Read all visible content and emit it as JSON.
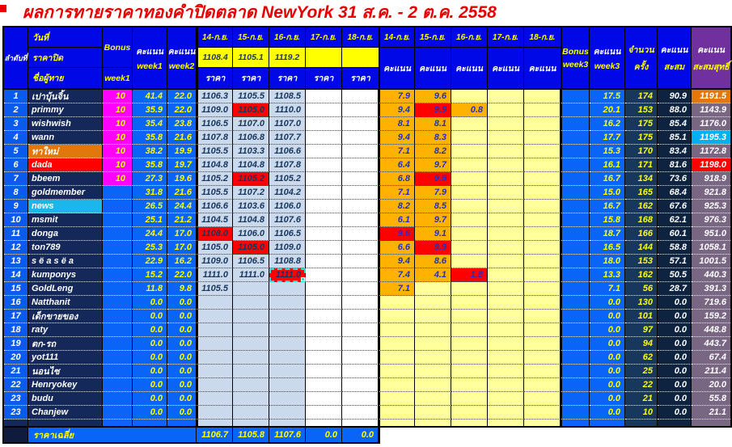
{
  "title": "ผลการทายราคาทองคำปิดตลาด NewYork 31 ส.ค. - 2 ต.ค. 2558",
  "labels": {
    "rank": "ลำดับที่",
    "date": "วันที่",
    "close": "ราคาปิด",
    "name": "ชื่อผู้ทาย",
    "bonus": "Bonus",
    "week1": "week1",
    "week2": "week2",
    "week3": "week3",
    "score": "คะแนน",
    "price": "ราคา",
    "count_line1": "จำนวน",
    "count_line2": "ครั้ง",
    "cum_line1": "คะแนน",
    "cum_line2": "สะสม",
    "net_line1": "คะแนน",
    "net_line2": "สะสมสุทธิ์",
    "avg": "ราคาเฉลี่ย"
  },
  "dates": [
    "14-ก.ย.",
    "15-ก.ย.",
    "16-ก.ย.",
    "17-ก.ย.",
    "18-ก.ย."
  ],
  "close_prices": [
    "1108.4",
    "1105.1",
    "1119.2",
    "",
    ""
  ],
  "colors": {
    "header_blue": "#0008E8",
    "data_blue": "#0A64F8",
    "name_navy": "#15285A",
    "highlight_red": "#FF0000",
    "bonus_magenta": "#FF00FF",
    "score_orange": "#FFB300",
    "empty_yellow": "#FFFF9C",
    "price_fill": "#CBD9ED",
    "net_purple": "#786683",
    "net_header_purple": "#7030A0",
    "rank1_orange": "#E2770B",
    "rank_cyan": "#00B0F0",
    "selection_teal": "#20E0D0",
    "title_red": "#E60000"
  },
  "rows": [
    {
      "no": "1",
      "name": "เปาบุ้นจิ้น",
      "name_bg": "",
      "bonus": "10",
      "wk1": "41.4",
      "wk2": "22.0",
      "prices": [
        "1106.3",
        "1105.5",
        "1108.5",
        "",
        ""
      ],
      "p_red": [],
      "sel": -1,
      "scores": [
        "7.9",
        "9.6",
        "",
        "",
        ""
      ],
      "s_red": [],
      "wk3": "17.5",
      "count": "174",
      "cum": "90.9",
      "net": "1191.5",
      "net_bg": "orange"
    },
    {
      "no": "2",
      "name": "primmy",
      "name_bg": "",
      "bonus": "10",
      "wk1": "35.9",
      "wk2": "22.0",
      "prices": [
        "1109.0",
        "1105.0",
        "1110.0",
        "",
        ""
      ],
      "p_red": [
        1
      ],
      "sel": -1,
      "scores": [
        "9.4",
        "9.9",
        "0.8",
        "",
        ""
      ],
      "s_red": [
        1
      ],
      "wk3": "20.1",
      "count": "153",
      "cum": "88.0",
      "net": "1143.9",
      "net_bg": ""
    },
    {
      "no": "3",
      "name": "wishwish",
      "name_bg": "",
      "bonus": "10",
      "wk1": "35.4",
      "wk2": "23.8",
      "prices": [
        "1106.5",
        "1107.0",
        "1107.0",
        "",
        ""
      ],
      "p_red": [],
      "sel": -1,
      "scores": [
        "8.1",
        "8.1",
        "",
        "",
        ""
      ],
      "s_red": [],
      "wk3": "16.2",
      "count": "175",
      "cum": "85.4",
      "net": "1176.0",
      "net_bg": ""
    },
    {
      "no": "4",
      "name": "wann",
      "name_bg": "",
      "bonus": "10",
      "wk1": "35.8",
      "wk2": "21.6",
      "prices": [
        "1107.8",
        "1106.8",
        "1107.7",
        "",
        ""
      ],
      "p_red": [],
      "sel": -1,
      "scores": [
        "9.4",
        "8.3",
        "",
        "",
        ""
      ],
      "s_red": [],
      "wk3": "17.7",
      "count": "175",
      "cum": "85.1",
      "net": "1195.3",
      "net_bg": "cyan"
    },
    {
      "no": "5",
      "name": "ทาใหม่",
      "name_bg": "orange",
      "bonus": "10",
      "wk1": "38.2",
      "wk2": "19.9",
      "prices": [
        "1105.5",
        "1103.3",
        "1106.6",
        "",
        ""
      ],
      "p_red": [],
      "sel": -1,
      "scores": [
        "7.1",
        "8.2",
        "",
        "",
        ""
      ],
      "s_red": [],
      "wk3": "15.3",
      "count": "170",
      "cum": "83.4",
      "net": "1172.8",
      "net_bg": ""
    },
    {
      "no": "6",
      "name": "dada",
      "name_bg": "red",
      "bonus": "10",
      "wk1": "35.8",
      "wk2": "19.7",
      "prices": [
        "1104.8",
        "1104.8",
        "1107.8",
        "",
        ""
      ],
      "p_red": [],
      "sel": -1,
      "scores": [
        "6.4",
        "9.7",
        "",
        "",
        ""
      ],
      "s_red": [],
      "wk3": "16.1",
      "count": "171",
      "cum": "81.6",
      "net": "1198.0",
      "net_bg": "red"
    },
    {
      "no": "7",
      "name": "bbeem",
      "name_bg": "",
      "bonus": "10",
      "wk1": "27.3",
      "wk2": "19.6",
      "prices": [
        "1105.2",
        "1105.2",
        "1105.2",
        "",
        ""
      ],
      "p_red": [
        1
      ],
      "sel": -1,
      "scores": [
        "6.8",
        "9.9",
        "",
        "",
        ""
      ],
      "s_red": [
        1
      ],
      "wk3": "16.7",
      "count": "134",
      "cum": "73.6",
      "net": "918.9",
      "net_bg": ""
    },
    {
      "no": "8",
      "name": "goldmember",
      "name_bg": "",
      "bonus": "",
      "wk1": "31.8",
      "wk2": "21.6",
      "prices": [
        "1105.5",
        "1107.2",
        "1104.2",
        "",
        ""
      ],
      "p_red": [],
      "sel": -1,
      "scores": [
        "7.1",
        "7.9",
        "",
        "",
        ""
      ],
      "s_red": [],
      "wk3": "15.0",
      "count": "165",
      "cum": "68.4",
      "net": "921.8",
      "net_bg": ""
    },
    {
      "no": "9",
      "name": "news",
      "name_bg": "cyan",
      "bonus": "",
      "wk1": "26.5",
      "wk2": "24.4",
      "prices": [
        "1106.6",
        "1103.6",
        "1106.0",
        "",
        ""
      ],
      "p_red": [],
      "sel": -1,
      "scores": [
        "8.2",
        "8.5",
        "",
        "",
        ""
      ],
      "s_red": [],
      "wk3": "16.7",
      "count": "162",
      "cum": "67.6",
      "net": "925.3",
      "net_bg": ""
    },
    {
      "no": "10",
      "name": "msmit",
      "name_bg": "",
      "bonus": "",
      "wk1": "25.1",
      "wk2": "21.2",
      "prices": [
        "1104.5",
        "1104.8",
        "1107.6",
        "",
        ""
      ],
      "p_red": [],
      "sel": -1,
      "scores": [
        "6.1",
        "9.7",
        "",
        "",
        ""
      ],
      "s_red": [],
      "wk3": "15.8",
      "count": "168",
      "cum": "62.1",
      "net": "976.3",
      "net_bg": ""
    },
    {
      "no": "11",
      "name": "donga",
      "name_bg": "",
      "bonus": "",
      "wk1": "24.4",
      "wk2": "17.0",
      "prices": [
        "1108.0",
        "1106.0",
        "1106.5",
        "",
        ""
      ],
      "p_red": [
        0
      ],
      "sel": -1,
      "scores": [
        "9.6",
        "9.1",
        "",
        "",
        ""
      ],
      "s_red": [
        0
      ],
      "wk3": "18.7",
      "count": "166",
      "cum": "60.1",
      "net": "951.0",
      "net_bg": ""
    },
    {
      "no": "12",
      "name": "ton789",
      "name_bg": "",
      "bonus": "",
      "wk1": "25.3",
      "wk2": "17.0",
      "prices": [
        "1105.0",
        "1105.0",
        "1109.0",
        "",
        ""
      ],
      "p_red": [
        1
      ],
      "sel": -1,
      "scores": [
        "6.6",
        "9.9",
        "",
        "",
        ""
      ],
      "s_red": [
        1
      ],
      "wk3": "16.5",
      "count": "144",
      "cum": "58.8",
      "net": "1058.1",
      "net_bg": ""
    },
    {
      "no": "13",
      "name": "s ë a s ë a",
      "name_bg": "",
      "bonus": "",
      "wk1": "22.9",
      "wk2": "16.2",
      "prices": [
        "1109.0",
        "1106.5",
        "1108.8",
        "",
        ""
      ],
      "p_red": [],
      "sel": -1,
      "scores": [
        "9.4",
        "8.6",
        "",
        "",
        ""
      ],
      "s_red": [],
      "wk3": "18.0",
      "count": "153",
      "cum": "57.1",
      "net": "1001.5",
      "net_bg": ""
    },
    {
      "no": "14",
      "name": "kumponys",
      "name_bg": "",
      "bonus": "",
      "wk1": "15.2",
      "wk2": "22.0",
      "prices": [
        "1111.0",
        "1111.0",
        "1111.0",
        "",
        ""
      ],
      "p_red": [
        2
      ],
      "sel": 2,
      "scores": [
        "7.4",
        "4.1",
        "1.8",
        "",
        ""
      ],
      "s_red": [
        2
      ],
      "wk3": "13.3",
      "count": "162",
      "cum": "50.5",
      "net": "440.3",
      "net_bg": ""
    },
    {
      "no": "15",
      "name": "GoldLeng",
      "name_bg": "",
      "bonus": "",
      "wk1": "11.8",
      "wk2": "9.8",
      "prices": [
        "1105.5",
        "",
        "",
        "",
        ""
      ],
      "p_red": [],
      "sel": -1,
      "scores": [
        "7.1",
        "",
        "",
        "",
        ""
      ],
      "s_red": [],
      "wk3": "7.1",
      "count": "56",
      "cum": "28.7",
      "net": "391.3",
      "net_bg": ""
    },
    {
      "no": "16",
      "name": "Natthanit",
      "name_bg": "",
      "bonus": "",
      "wk1": "0.0",
      "wk2": "0.0",
      "prices": [
        "",
        "",
        "",
        "",
        ""
      ],
      "p_red": [],
      "sel": -1,
      "scores": [
        "",
        "",
        "",
        "",
        ""
      ],
      "s_red": [],
      "wk3": "0.0",
      "count": "130",
      "cum": "0.0",
      "net": "719.6",
      "net_bg": ""
    },
    {
      "no": "17",
      "name": "เด็กขายของ",
      "name_bg": "",
      "bonus": "",
      "wk1": "0.0",
      "wk2": "0.0",
      "prices": [
        "",
        "",
        "",
        "",
        ""
      ],
      "p_red": [],
      "sel": -1,
      "scores": [
        "",
        "",
        "",
        "",
        ""
      ],
      "s_red": [],
      "wk3": "0.0",
      "count": "101",
      "cum": "0.0",
      "net": "159.2",
      "net_bg": ""
    },
    {
      "no": "18",
      "name": "raty",
      "name_bg": "",
      "bonus": "",
      "wk1": "0.0",
      "wk2": "0.0",
      "prices": [
        "",
        "",
        "",
        "",
        ""
      ],
      "p_red": [],
      "sel": -1,
      "scores": [
        "",
        "",
        "",
        "",
        ""
      ],
      "s_red": [],
      "wk3": "0.0",
      "count": "97",
      "cum": "0.0",
      "net": "448.8",
      "net_bg": ""
    },
    {
      "no": "19",
      "name": "ตก-รถ",
      "name_bg": "",
      "bonus": "",
      "wk1": "0.0",
      "wk2": "0.0",
      "prices": [
        "",
        "",
        "",
        "",
        ""
      ],
      "p_red": [],
      "sel": -1,
      "scores": [
        "",
        "",
        "",
        "",
        ""
      ],
      "s_red": [],
      "wk3": "0.0",
      "count": "94",
      "cum": "0.0",
      "net": "443.7",
      "net_bg": ""
    },
    {
      "no": "20",
      "name": "yot111",
      "name_bg": "",
      "bonus": "",
      "wk1": "0.0",
      "wk2": "0.0",
      "prices": [
        "",
        "",
        "",
        "",
        ""
      ],
      "p_red": [],
      "sel": -1,
      "scores": [
        "",
        "",
        "",
        "",
        ""
      ],
      "s_red": [],
      "wk3": "0.0",
      "count": "62",
      "cum": "0.0",
      "net": "67.4",
      "net_bg": ""
    },
    {
      "no": "21",
      "name": "นอนไซ",
      "name_bg": "",
      "bonus": "",
      "wk1": "0.0",
      "wk2": "0.0",
      "prices": [
        "",
        "",
        "",
        "",
        ""
      ],
      "p_red": [],
      "sel": -1,
      "scores": [
        "",
        "",
        "",
        "",
        ""
      ],
      "s_red": [],
      "wk3": "0.0",
      "count": "25",
      "cum": "0.0",
      "net": "211.4",
      "net_bg": ""
    },
    {
      "no": "22",
      "name": "Henryokey",
      "name_bg": "",
      "bonus": "",
      "wk1": "0.0",
      "wk2": "0.0",
      "prices": [
        "",
        "",
        "",
        "",
        ""
      ],
      "p_red": [],
      "sel": -1,
      "scores": [
        "",
        "",
        "",
        "",
        ""
      ],
      "s_red": [],
      "wk3": "0.0",
      "count": "22",
      "cum": "0.0",
      "net": "20.0",
      "net_bg": ""
    },
    {
      "no": "23",
      "name": "budu",
      "name_bg": "",
      "bonus": "",
      "wk1": "0.0",
      "wk2": "0.0",
      "prices": [
        "",
        "",
        "",
        "",
        ""
      ],
      "p_red": [],
      "sel": -1,
      "scores": [
        "",
        "",
        "",
        "",
        ""
      ],
      "s_red": [],
      "wk3": "0.0",
      "count": "21",
      "cum": "0.0",
      "net": "55.8",
      "net_bg": ""
    },
    {
      "no": "23",
      "name": "Chanjew",
      "name_bg": "",
      "bonus": "",
      "wk1": "0.0",
      "wk2": "0.0",
      "prices": [
        "",
        "",
        "",
        "",
        ""
      ],
      "p_red": [],
      "sel": -1,
      "scores": [
        "",
        "",
        "",
        "",
        ""
      ],
      "s_red": [],
      "wk3": "0.0",
      "count": "10",
      "cum": "0.0",
      "net": "21.1",
      "net_bg": ""
    }
  ],
  "footer": {
    "values": [
      "1106.7",
      "1105.8",
      "1107.6",
      "0.0",
      "0.0"
    ]
  }
}
